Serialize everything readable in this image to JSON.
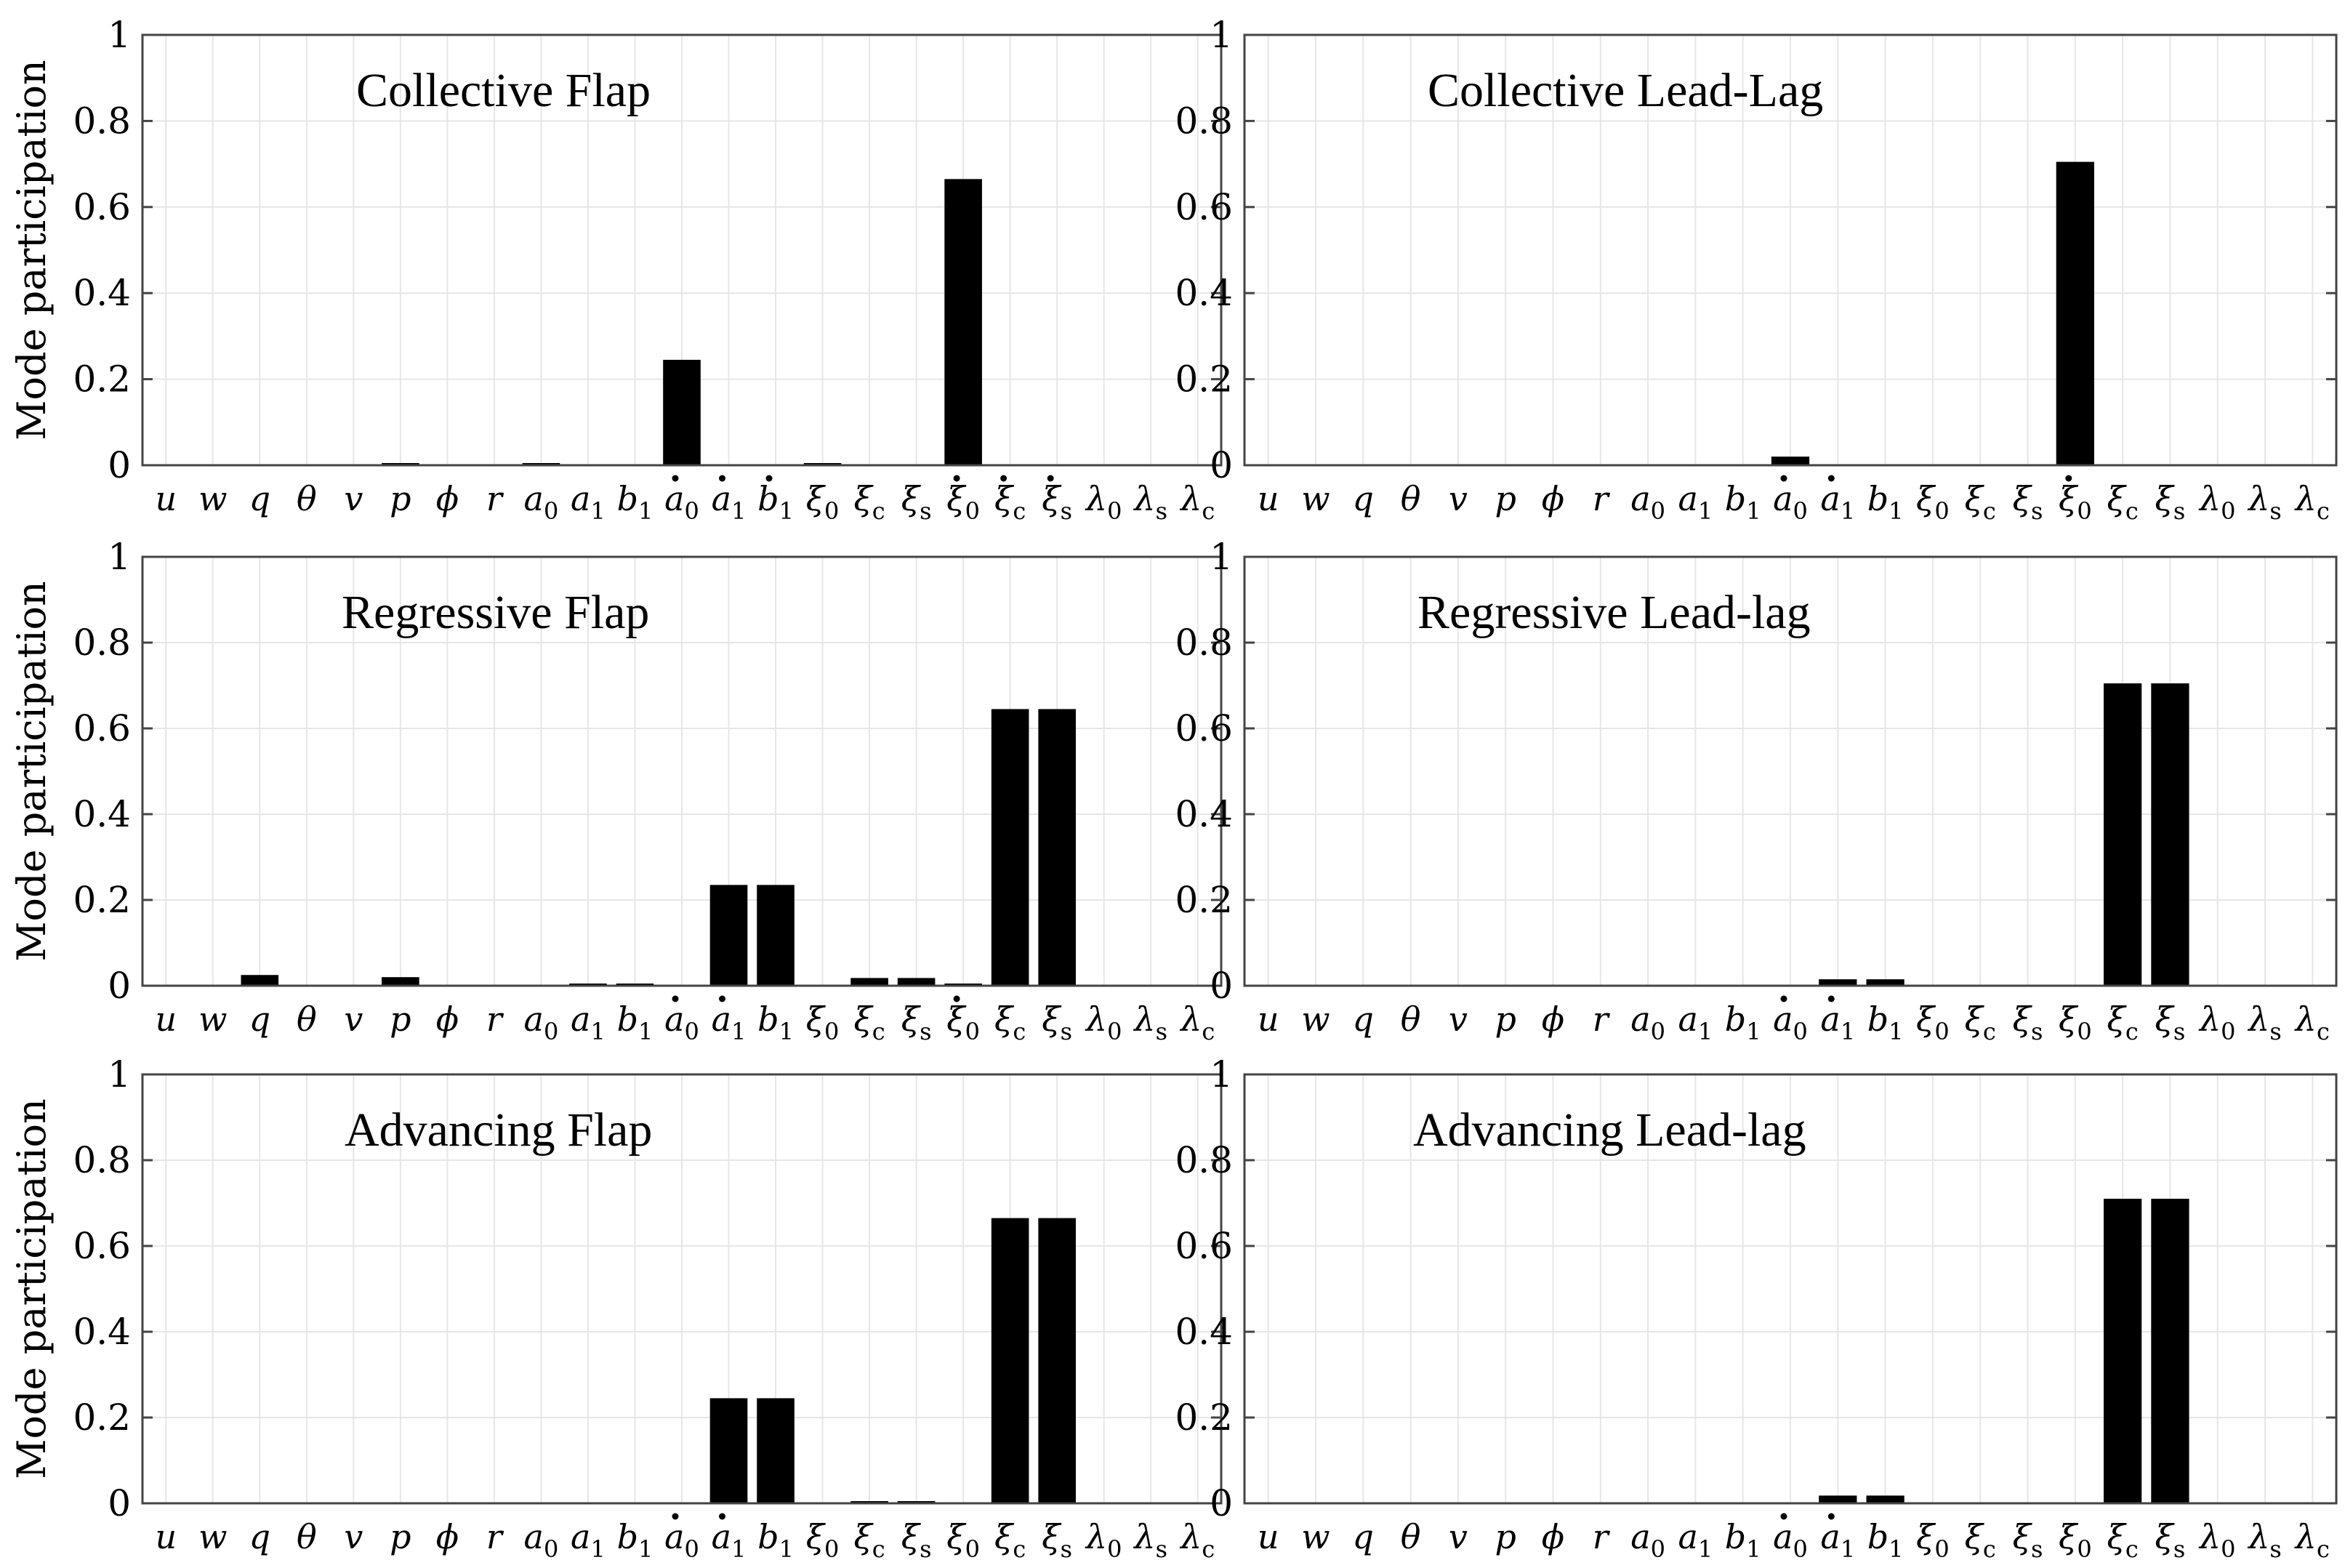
{
  "yticks": [
    0,
    0.2,
    0.4,
    0.6,
    0.8,
    1
  ],
  "yticklabels": [
    "0",
    "0.2",
    "0.4",
    "0.6",
    "0.8",
    "1"
  ],
  "chart_data": [
    {
      "type": "bar",
      "title": "Collective Flap",
      "ylabel": "Mode participation",
      "ylim": [
        0,
        1
      ],
      "grid": true,
      "categories": [
        {
          "b": "u",
          "s": "",
          "d": false
        },
        {
          "b": "w",
          "s": "",
          "d": false
        },
        {
          "b": "q",
          "s": "",
          "d": false
        },
        {
          "b": "θ",
          "s": "",
          "d": false
        },
        {
          "b": "v",
          "s": "",
          "d": false
        },
        {
          "b": "p",
          "s": "",
          "d": false
        },
        {
          "b": "ϕ",
          "s": "",
          "d": false
        },
        {
          "b": "r",
          "s": "",
          "d": false
        },
        {
          "b": "a",
          "s": "0",
          "d": false
        },
        {
          "b": "a",
          "s": "1",
          "d": false
        },
        {
          "b": "b",
          "s": "1",
          "d": false
        },
        {
          "b": "a",
          "s": "0",
          "d": true
        },
        {
          "b": "a",
          "s": "1",
          "d": true
        },
        {
          "b": "b",
          "s": "1",
          "d": true
        },
        {
          "b": "ξ",
          "s": "0",
          "d": false
        },
        {
          "b": "ξ",
          "s": "c",
          "d": false
        },
        {
          "b": "ξ",
          "s": "s",
          "d": false
        },
        {
          "b": "ξ",
          "s": "0",
          "d": true
        },
        {
          "b": "ξ",
          "s": "c",
          "d": true
        },
        {
          "b": "ξ",
          "s": "s",
          "d": true
        },
        {
          "b": "λ",
          "s": "0",
          "d": false
        },
        {
          "b": "λ",
          "s": "s",
          "d": false
        },
        {
          "b": "λ",
          "s": "c",
          "d": false
        }
      ],
      "values": [
        0,
        0,
        0,
        0,
        0,
        0.002,
        0,
        0,
        0.001,
        0,
        0,
        0.245,
        0,
        0,
        0.003,
        0,
        0,
        0.665,
        0,
        0,
        0,
        0,
        0
      ]
    },
    {
      "type": "bar",
      "title": "Collective Lead-Lag",
      "ylabel": "",
      "ylim": [
        0,
        1
      ],
      "grid": true,
      "categories": [
        {
          "b": "u",
          "s": "",
          "d": false
        },
        {
          "b": "w",
          "s": "",
          "d": false
        },
        {
          "b": "q",
          "s": "",
          "d": false
        },
        {
          "b": "θ",
          "s": "",
          "d": false
        },
        {
          "b": "v",
          "s": "",
          "d": false
        },
        {
          "b": "p",
          "s": "",
          "d": false
        },
        {
          "b": "ϕ",
          "s": "",
          "d": false
        },
        {
          "b": "r",
          "s": "",
          "d": false
        },
        {
          "b": "a",
          "s": "0",
          "d": false
        },
        {
          "b": "a",
          "s": "1",
          "d": false
        },
        {
          "b": "b",
          "s": "1",
          "d": false
        },
        {
          "b": "a",
          "s": "0",
          "d": true
        },
        {
          "b": "a",
          "s": "1",
          "d": true
        },
        {
          "b": "b",
          "s": "1",
          "d": false
        },
        {
          "b": "ξ",
          "s": "0",
          "d": false
        },
        {
          "b": "ξ",
          "s": "c",
          "d": false
        },
        {
          "b": "ξ",
          "s": "s",
          "d": false
        },
        {
          "b": "ξ",
          "s": "0",
          "d": true
        },
        {
          "b": "ξ",
          "s": "c",
          "d": false
        },
        {
          "b": "ξ",
          "s": "s",
          "d": false
        },
        {
          "b": "λ",
          "s": "0",
          "d": false
        },
        {
          "b": "λ",
          "s": "s",
          "d": false
        },
        {
          "b": "λ",
          "s": "c",
          "d": false
        }
      ],
      "values": [
        0,
        0,
        0,
        0,
        0,
        0,
        0,
        0,
        0,
        0,
        0,
        0.02,
        0,
        0,
        0,
        0,
        0,
        0.705,
        0,
        0,
        0,
        0,
        0
      ]
    },
    {
      "type": "bar",
      "title": "Regressive Flap",
      "ylabel": "Mode participation",
      "ylim": [
        0,
        1
      ],
      "grid": true,
      "categories": [
        {
          "b": "u",
          "s": "",
          "d": false
        },
        {
          "b": "w",
          "s": "",
          "d": false
        },
        {
          "b": "q",
          "s": "",
          "d": false
        },
        {
          "b": "θ",
          "s": "",
          "d": false
        },
        {
          "b": "v",
          "s": "",
          "d": false
        },
        {
          "b": "p",
          "s": "",
          "d": false
        },
        {
          "b": "ϕ",
          "s": "",
          "d": false
        },
        {
          "b": "r",
          "s": "",
          "d": false
        },
        {
          "b": "a",
          "s": "0",
          "d": false
        },
        {
          "b": "a",
          "s": "1",
          "d": false
        },
        {
          "b": "b",
          "s": "1",
          "d": false
        },
        {
          "b": "a",
          "s": "0",
          "d": true
        },
        {
          "b": "a",
          "s": "1",
          "d": true
        },
        {
          "b": "b",
          "s": "1",
          "d": false
        },
        {
          "b": "ξ",
          "s": "0",
          "d": false
        },
        {
          "b": "ξ",
          "s": "c",
          "d": false
        },
        {
          "b": "ξ",
          "s": "s",
          "d": false
        },
        {
          "b": "ξ",
          "s": "0",
          "d": true
        },
        {
          "b": "ξ",
          "s": "c",
          "d": false
        },
        {
          "b": "ξ",
          "s": "s",
          "d": false
        },
        {
          "b": "λ",
          "s": "0",
          "d": false
        },
        {
          "b": "λ",
          "s": "s",
          "d": false
        },
        {
          "b": "λ",
          "s": "c",
          "d": false
        }
      ],
      "values": [
        0,
        0,
        0.025,
        0,
        0,
        0.02,
        0,
        0,
        0,
        0.005,
        0.005,
        0,
        0.235,
        0.235,
        0,
        0.018,
        0.018,
        0.003,
        0.645,
        0.645,
        0,
        0,
        0
      ]
    },
    {
      "type": "bar",
      "title": "Regressive Lead-lag",
      "ylabel": "",
      "ylim": [
        0,
        1
      ],
      "grid": true,
      "categories": [
        {
          "b": "u",
          "s": "",
          "d": false
        },
        {
          "b": "w",
          "s": "",
          "d": false
        },
        {
          "b": "q",
          "s": "",
          "d": false
        },
        {
          "b": "θ",
          "s": "",
          "d": false
        },
        {
          "b": "v",
          "s": "",
          "d": false
        },
        {
          "b": "p",
          "s": "",
          "d": false
        },
        {
          "b": "ϕ",
          "s": "",
          "d": false
        },
        {
          "b": "r",
          "s": "",
          "d": false
        },
        {
          "b": "a",
          "s": "0",
          "d": false
        },
        {
          "b": "a",
          "s": "1",
          "d": false
        },
        {
          "b": "b",
          "s": "1",
          "d": false
        },
        {
          "b": "a",
          "s": "0",
          "d": true
        },
        {
          "b": "a",
          "s": "1",
          "d": true
        },
        {
          "b": "b",
          "s": "1",
          "d": false
        },
        {
          "b": "ξ",
          "s": "0",
          "d": false
        },
        {
          "b": "ξ",
          "s": "c",
          "d": false
        },
        {
          "b": "ξ",
          "s": "s",
          "d": false
        },
        {
          "b": "ξ",
          "s": "0",
          "d": false
        },
        {
          "b": "ξ",
          "s": "c",
          "d": false
        },
        {
          "b": "ξ",
          "s": "s",
          "d": false
        },
        {
          "b": "λ",
          "s": "0",
          "d": false
        },
        {
          "b": "λ",
          "s": "s",
          "d": false
        },
        {
          "b": "λ",
          "s": "c",
          "d": false
        }
      ],
      "values": [
        0,
        0,
        0,
        0,
        0,
        0,
        0,
        0,
        0,
        0,
        0,
        0,
        0.015,
        0.015,
        0,
        0,
        0,
        0,
        0.705,
        0.705,
        0,
        0,
        0
      ]
    },
    {
      "type": "bar",
      "title": "Advancing Flap",
      "ylabel": "Mode participation",
      "ylim": [
        0,
        1
      ],
      "grid": true,
      "categories": [
        {
          "b": "u",
          "s": "",
          "d": false
        },
        {
          "b": "w",
          "s": "",
          "d": false
        },
        {
          "b": "q",
          "s": "",
          "d": false
        },
        {
          "b": "θ",
          "s": "",
          "d": false
        },
        {
          "b": "v",
          "s": "",
          "d": false
        },
        {
          "b": "p",
          "s": "",
          "d": false
        },
        {
          "b": "ϕ",
          "s": "",
          "d": false
        },
        {
          "b": "r",
          "s": "",
          "d": false
        },
        {
          "b": "a",
          "s": "0",
          "d": false
        },
        {
          "b": "a",
          "s": "1",
          "d": false
        },
        {
          "b": "b",
          "s": "1",
          "d": false
        },
        {
          "b": "a",
          "s": "0",
          "d": true
        },
        {
          "b": "a",
          "s": "1",
          "d": true
        },
        {
          "b": "b",
          "s": "1",
          "d": false
        },
        {
          "b": "ξ",
          "s": "0",
          "d": false
        },
        {
          "b": "ξ",
          "s": "c",
          "d": false
        },
        {
          "b": "ξ",
          "s": "s",
          "d": false
        },
        {
          "b": "ξ",
          "s": "0",
          "d": false
        },
        {
          "b": "ξ",
          "s": "c",
          "d": false
        },
        {
          "b": "ξ",
          "s": "s",
          "d": false
        },
        {
          "b": "λ",
          "s": "0",
          "d": false
        },
        {
          "b": "λ",
          "s": "s",
          "d": false
        },
        {
          "b": "λ",
          "s": "c",
          "d": false
        }
      ],
      "values": [
        0,
        0,
        0,
        0,
        0,
        0,
        0,
        0,
        0,
        0,
        0,
        0,
        0.245,
        0.245,
        0,
        0.002,
        0.002,
        0,
        0.665,
        0.665,
        0,
        0,
        0
      ]
    },
    {
      "type": "bar",
      "title": "Advancing Lead-lag",
      "ylabel": "",
      "ylim": [
        0,
        1
      ],
      "grid": true,
      "categories": [
        {
          "b": "u",
          "s": "",
          "d": false
        },
        {
          "b": "w",
          "s": "",
          "d": false
        },
        {
          "b": "q",
          "s": "",
          "d": false
        },
        {
          "b": "θ",
          "s": "",
          "d": false
        },
        {
          "b": "v",
          "s": "",
          "d": false
        },
        {
          "b": "p",
          "s": "",
          "d": false
        },
        {
          "b": "ϕ",
          "s": "",
          "d": false
        },
        {
          "b": "r",
          "s": "",
          "d": false
        },
        {
          "b": "a",
          "s": "0",
          "d": false
        },
        {
          "b": "a",
          "s": "1",
          "d": false
        },
        {
          "b": "b",
          "s": "1",
          "d": false
        },
        {
          "b": "a",
          "s": "0",
          "d": true
        },
        {
          "b": "a",
          "s": "1",
          "d": true
        },
        {
          "b": "b",
          "s": "1",
          "d": false
        },
        {
          "b": "ξ",
          "s": "0",
          "d": false
        },
        {
          "b": "ξ",
          "s": "c",
          "d": false
        },
        {
          "b": "ξ",
          "s": "s",
          "d": false
        },
        {
          "b": "ξ",
          "s": "0",
          "d": false
        },
        {
          "b": "ξ",
          "s": "c",
          "d": false
        },
        {
          "b": "ξ",
          "s": "s",
          "d": false
        },
        {
          "b": "λ",
          "s": "0",
          "d": false
        },
        {
          "b": "λ",
          "s": "s",
          "d": false
        },
        {
          "b": "λ",
          "s": "c",
          "d": false
        }
      ],
      "values": [
        0,
        0,
        0,
        0,
        0,
        0,
        0,
        0,
        0,
        0,
        0,
        0,
        0.018,
        0.018,
        0,
        0,
        0,
        0,
        0.71,
        0.71,
        0,
        0,
        0
      ]
    }
  ]
}
